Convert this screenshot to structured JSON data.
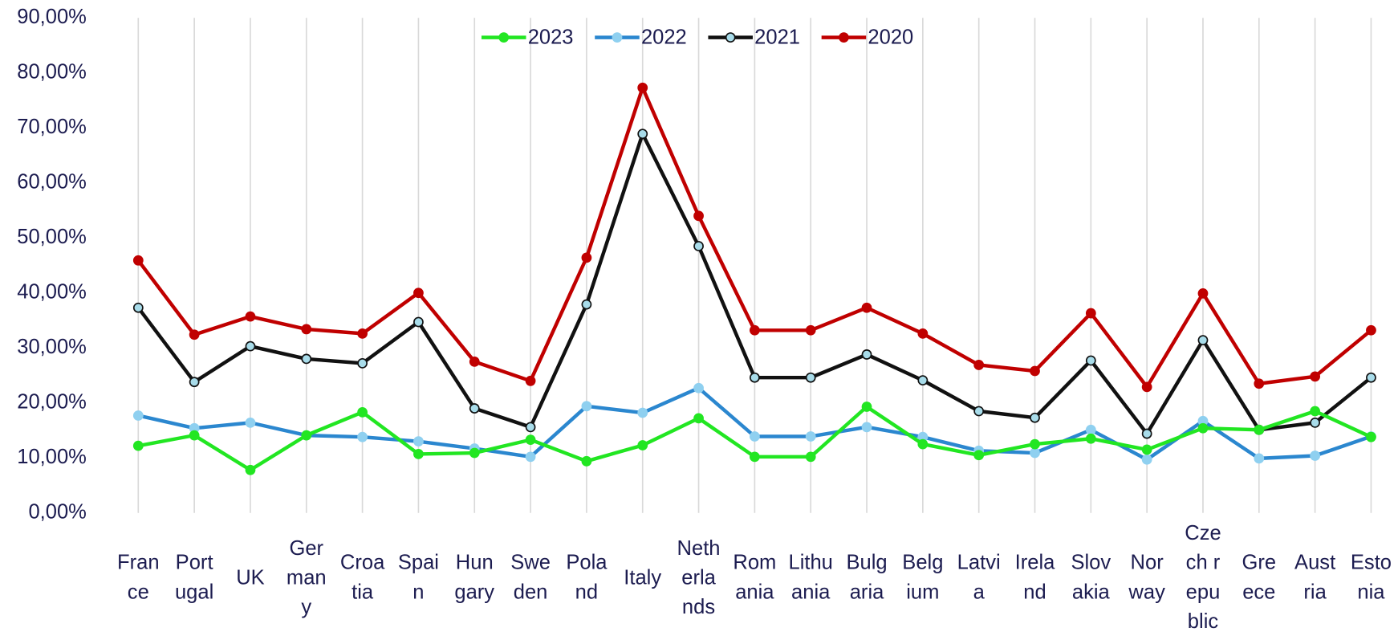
{
  "chart_data": {
    "type": "line",
    "categories": [
      "France",
      "Portugal",
      "UK",
      "Germany",
      "Croatia",
      "Spain",
      "Hungary",
      "Sweden",
      "Poland",
      "Italy",
      "Netherlands",
      "Romania",
      "Lithuania",
      "Bulgaria",
      "Belgium",
      "Latvia",
      "Ireland",
      "Slovakia",
      "Norway",
      "Czech republic",
      "Greece",
      "Austria",
      "Estonia"
    ],
    "series": [
      {
        "name": "2023",
        "color": "#22e622",
        "marker_fill": "#22e622",
        "values": [
          12.2,
          14.1,
          7.8,
          14.1,
          18.3,
          10.7,
          10.9,
          13.3,
          9.4,
          12.3,
          17.2,
          10.2,
          10.2,
          19.3,
          12.5,
          10.5,
          12.5,
          13.5,
          11.5,
          15.4,
          15.1,
          18.5,
          13.8
        ]
      },
      {
        "name": "2022",
        "color": "#2b87cf",
        "marker_fill": "#8fd0f0",
        "values": [
          17.7,
          15.4,
          16.4,
          14.1,
          13.8,
          13.0,
          11.7,
          10.2,
          19.4,
          18.2,
          22.7,
          13.9,
          13.9,
          15.6,
          13.8,
          11.3,
          10.9,
          15.1,
          9.7,
          16.7,
          9.9,
          10.4,
          13.9
        ]
      },
      {
        "name": "2021",
        "color": "#111111",
        "marker_fill": "#a8dcea",
        "values": [
          37.3,
          23.8,
          30.3,
          28.0,
          27.2,
          34.7,
          19.0,
          15.6,
          37.9,
          68.9,
          48.5,
          24.6,
          24.6,
          28.8,
          24.1,
          18.5,
          17.3,
          27.7,
          14.4,
          31.4,
          15.1,
          16.4,
          24.6
        ]
      },
      {
        "name": "2020",
        "color": "#c00000",
        "marker_fill": "#c00000",
        "values": [
          45.9,
          32.4,
          35.7,
          33.4,
          32.6,
          40.0,
          27.5,
          24.0,
          46.4,
          77.3,
          54.0,
          33.2,
          33.2,
          37.3,
          32.6,
          26.9,
          25.8,
          36.3,
          22.9,
          39.9,
          23.5,
          24.8,
          33.2
        ]
      }
    ],
    "ylim": [
      0,
      90
    ],
    "yticks": [
      {
        "value": 0,
        "label": "0,00%"
      },
      {
        "value": 10,
        "label": "10,00%"
      },
      {
        "value": 20,
        "label": "20,00%"
      },
      {
        "value": 30,
        "label": "30,00%"
      },
      {
        "value": 40,
        "label": "40,00%"
      },
      {
        "value": 50,
        "label": "50,00%"
      },
      {
        "value": 60,
        "label": "60,00%"
      },
      {
        "value": 70,
        "label": "70,00%"
      },
      {
        "value": 80,
        "label": "80,00%"
      },
      {
        "value": 90,
        "label": "90,00%"
      }
    ],
    "grid": "x",
    "legend": "top"
  }
}
